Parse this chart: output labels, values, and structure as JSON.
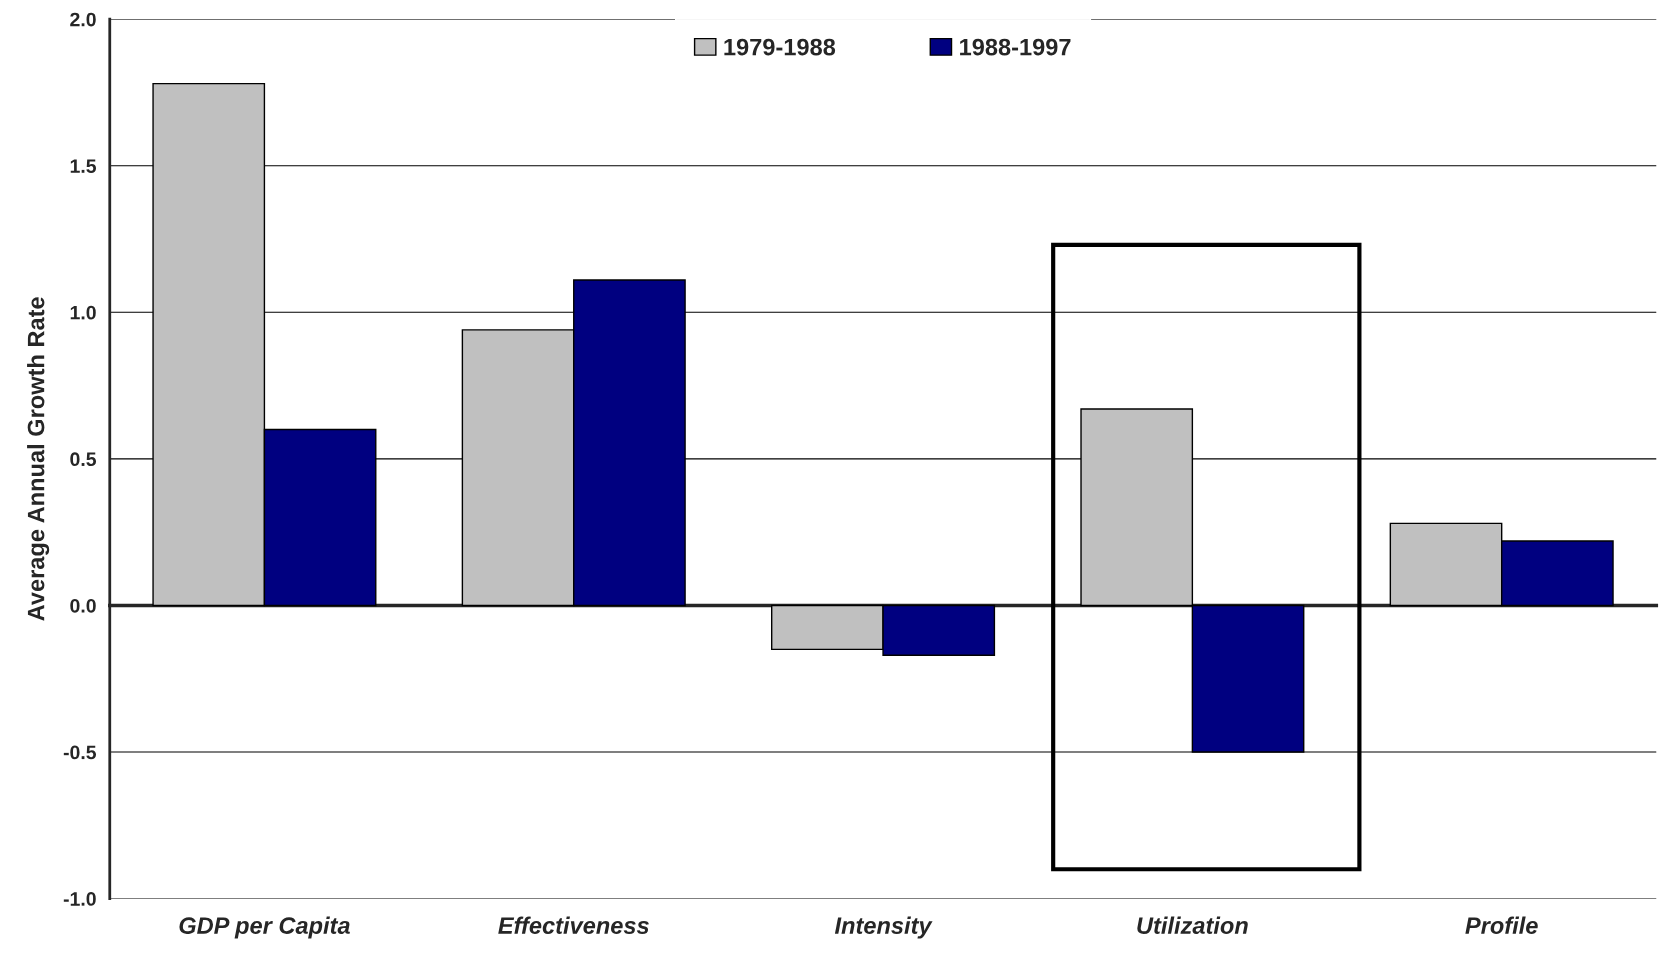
{
  "chart_data": {
    "type": "bar",
    "ylabel": "Average Annual Growth Rate",
    "categories": [
      "GDP per Capita",
      "Effectiveness",
      "Intensity",
      "Utilization",
      "Profile"
    ],
    "series": [
      {
        "name": "1979-1988",
        "color": "#c0c0c0",
        "values": [
          1.78,
          0.94,
          -0.15,
          0.67,
          0.28
        ]
      },
      {
        "name": "1988-1997",
        "color": "#000080",
        "values": [
          0.6,
          1.11,
          -0.17,
          -0.5,
          0.22
        ]
      }
    ],
    "ylim": [
      -1.0,
      2.0
    ],
    "yticks": [
      {
        "value": -1.0,
        "label": "-1.0"
      },
      {
        "value": -0.5,
        "label": "-0.5"
      },
      {
        "value": 0.0,
        "label": "0.0"
      },
      {
        "value": 0.5,
        "label": "0.5"
      },
      {
        "value": 1.0,
        "label": "1.0"
      },
      {
        "value": 1.5,
        "label": "1.5"
      },
      {
        "value": 2.0,
        "label": "2.0"
      }
    ],
    "grid": "y",
    "legend": "top"
  }
}
